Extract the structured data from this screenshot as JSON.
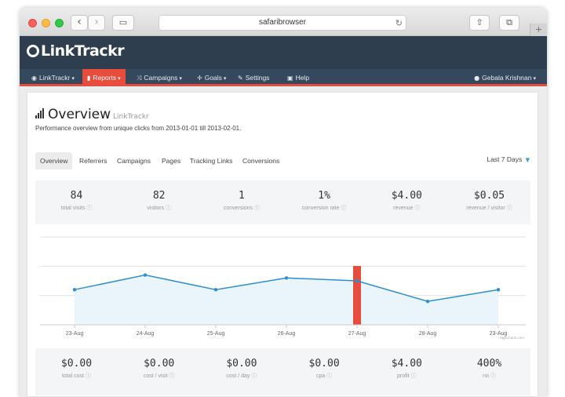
{
  "browser": {
    "url": "safaribrowser",
    "back_glyph": "‹",
    "forward_glyph": "›",
    "reload_glyph": "↻",
    "share_glyph": "⇧",
    "plus_glyph": "+"
  },
  "app": {
    "logo": "LinkTrackr",
    "menu": [
      {
        "label": "LinkTrackr",
        "icon": "globe-icon",
        "glyph": "◉",
        "active": false
      },
      {
        "label": "Reports",
        "icon": "chart-icon",
        "glyph": "▮",
        "active": true
      },
      {
        "label": "Campaigns",
        "icon": "shuffle-icon",
        "glyph": "⤨",
        "active": false
      },
      {
        "label": "Goals",
        "icon": "crosshair-icon",
        "glyph": "✛",
        "active": false
      },
      {
        "label": "Settings",
        "icon": "wrench-icon",
        "glyph": "✎",
        "active": false
      },
      {
        "label": "Help",
        "icon": "help-icon",
        "glyph": "▣",
        "active": false
      }
    ],
    "user": "Gebala Krishnan",
    "user_glyph": "●",
    "accent": "#e74c3c",
    "navbar_color": "#2f3e4e"
  },
  "overview": {
    "title": "Overview",
    "subtitle": "LinkTrackr",
    "description": "Performance overview from unique clicks from 2013-01-01 till 2013-02-01.",
    "tabs": [
      "Overview",
      "Referrers",
      "Campaigns",
      "Pages",
      "Tracking Links",
      "Conversions"
    ],
    "date_range": "Last 7 Days"
  },
  "stats_top": [
    {
      "value": "84",
      "label": "total visits"
    },
    {
      "value": "82",
      "label": "visitors"
    },
    {
      "value": "1",
      "label": "conversions"
    },
    {
      "value": "1%",
      "label": "conversion rate"
    },
    {
      "value": "$4.00",
      "label": "revenue"
    },
    {
      "value": "$0.05",
      "label": "revenue / visitor"
    }
  ],
  "stats_bottom": [
    {
      "value": "$0.00",
      "label": "total cost"
    },
    {
      "value": "$0.00",
      "label": "cost / visit"
    },
    {
      "value": "$0.00",
      "label": "cost / day"
    },
    {
      "value": "$0.00",
      "label": "cpa"
    },
    {
      "value": "$4.00",
      "label": "profit"
    },
    {
      "value": "400%",
      "label": "roi"
    }
  ],
  "chart_data": {
    "type": "line",
    "categories": [
      "23-Aug",
      "24-Aug",
      "25-Aug",
      "26-Aug",
      "27-Aug",
      "28-Aug",
      "23-Aug"
    ],
    "series": [
      {
        "values": [
          12,
          17,
          12,
          16,
          15,
          8,
          12
        ]
      }
    ],
    "highlight_bar": {
      "category": "27-Aug",
      "color": "#e74c3c"
    },
    "ylim": [
      0,
      30
    ],
    "line_color": "#2f8fce",
    "fill_color": "#eaf4fb",
    "grid": true,
    "credit": "Highcharts.com"
  }
}
